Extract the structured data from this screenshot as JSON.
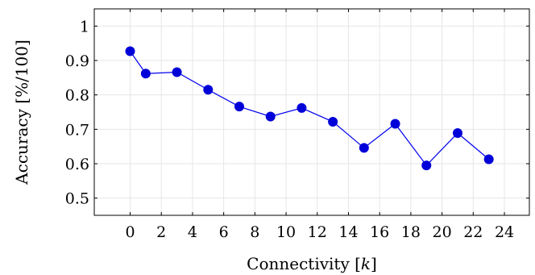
{
  "chart_data": {
    "type": "line",
    "title": "",
    "xlabel_text": "Connectivity [",
    "xlabel_var": "k",
    "xlabel_close": "]",
    "ylabel": "Accuracy [%/100]",
    "xlim": [
      -2.3,
      25.6
    ],
    "ylim": [
      0.45,
      1.05
    ],
    "xticks": [
      0,
      2,
      4,
      6,
      8,
      10,
      12,
      14,
      16,
      18,
      20,
      22,
      24
    ],
    "yticks": [
      0.5,
      0.6,
      0.7,
      0.8,
      0.9,
      1
    ],
    "ytick_labels": [
      "0.5",
      "0.6",
      "0.7",
      "0.8",
      "0.9",
      "1"
    ],
    "grid": true,
    "color": "#0000d8",
    "series": [
      {
        "x": [
          0,
          1,
          3,
          5,
          7,
          9,
          11,
          13,
          15,
          17,
          19,
          21,
          23
        ],
        "y": [
          0.927,
          0.862,
          0.866,
          0.815,
          0.766,
          0.737,
          0.762,
          0.722,
          0.646,
          0.716,
          0.595,
          0.689,
          0.613
        ]
      }
    ]
  }
}
